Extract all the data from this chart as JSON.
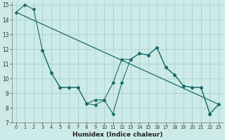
{
  "title": "",
  "xlabel": "Humidex (Indice chaleur)",
  "bg_color": "#cceae8",
  "grid_color": "#aad4d2",
  "line_color": "#1a6b6b",
  "xlim": [
    -0.5,
    23.5
  ],
  "ylim": [
    7,
    15.2
  ],
  "xticks": [
    0,
    1,
    2,
    3,
    4,
    5,
    6,
    7,
    8,
    9,
    10,
    11,
    12,
    13,
    14,
    15,
    16,
    17,
    18,
    19,
    20,
    21,
    22,
    23
  ],
  "yticks": [
    7,
    8,
    9,
    10,
    11,
    12,
    13,
    14,
    15
  ],
  "line1_x": [
    0,
    1,
    2,
    3,
    4,
    5,
    6,
    7,
    8,
    9,
    10,
    11,
    12,
    13,
    14,
    15,
    16,
    17,
    18,
    19,
    20,
    21,
    22,
    23
  ],
  "line1_y": [
    14.5,
    15.0,
    14.7,
    11.9,
    10.4,
    9.4,
    9.4,
    9.4,
    8.3,
    8.2,
    8.55,
    9.7,
    11.3,
    11.3,
    11.7,
    11.6,
    12.1,
    10.75,
    10.25,
    9.5,
    9.4,
    9.4,
    7.6,
    8.25
  ],
  "line2_x": [
    3,
    4,
    5,
    6,
    7,
    8,
    9,
    10,
    11,
    12,
    13,
    14,
    15,
    16,
    17,
    18,
    19,
    20,
    21,
    22,
    23
  ],
  "line2_y": [
    11.9,
    10.4,
    9.4,
    9.4,
    9.4,
    8.3,
    8.55,
    8.55,
    7.6,
    9.7,
    11.3,
    11.7,
    11.6,
    12.1,
    10.75,
    10.25,
    9.5,
    9.4,
    9.4,
    7.6,
    8.25
  ],
  "line3_x": [
    0,
    23
  ],
  "line3_y": [
    14.5,
    8.25
  ]
}
